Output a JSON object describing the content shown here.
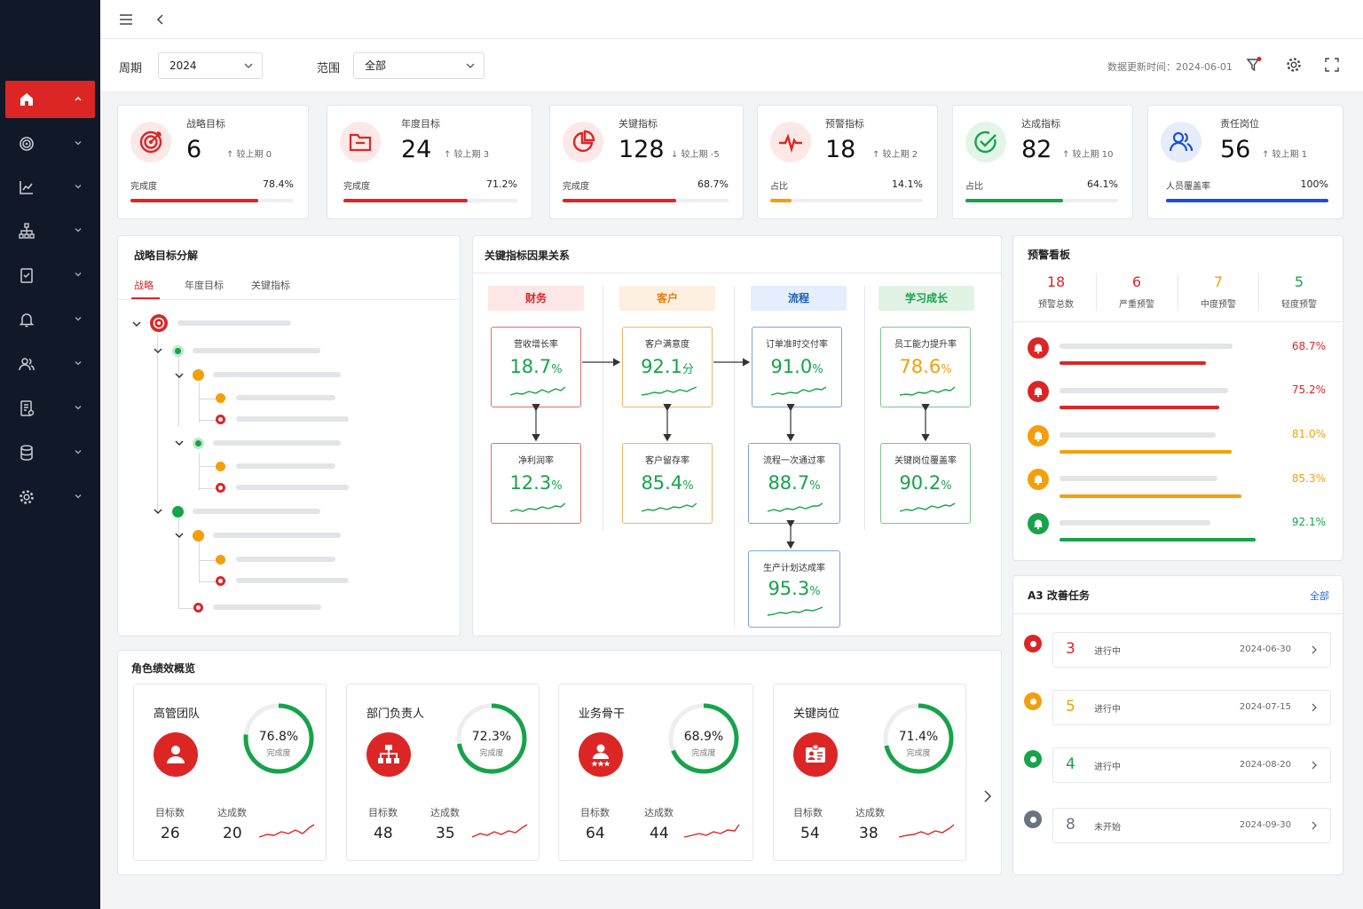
{
  "filters": {
    "period_label": "周期",
    "period_value": "2024",
    "scope_label": "范围",
    "scope_value": "全部",
    "updated": "数据更新时间：2024-06-01"
  },
  "kpis": [
    {
      "title": "战略目标",
      "value": "6",
      "delta": "↑ 较上期  0",
      "foot_label": "完成度",
      "foot_value": "78.4%",
      "progress": 0.784,
      "color": "#dc2626",
      "icon": "target-icon"
    },
    {
      "title": "年度目标",
      "value": "24",
      "delta": "↑ 较上期  3",
      "foot_label": "完成度",
      "foot_value": "71.2%",
      "progress": 0.712,
      "color": "#dc2626",
      "icon": "folder-icon"
    },
    {
      "title": "关键指标",
      "value": "128",
      "delta": "↓ 较上期  -5",
      "foot_label": "完成度",
      "foot_value": "68.7%",
      "progress": 0.687,
      "color": "#dc2626",
      "icon": "pie-icon"
    },
    {
      "title": "预警指标",
      "value": "18",
      "delta": "↑ 较上期  2",
      "foot_label": "占比",
      "foot_value": "14.1%",
      "progress": 0.141,
      "color": "#f59e0b",
      "icon": "pulse-icon"
    },
    {
      "title": "达成指标",
      "value": "82",
      "delta": "↑ 较上期  10",
      "foot_label": "占比",
      "foot_value": "64.1%",
      "progress": 0.641,
      "color": "#16a34a",
      "icon": "check-circle-icon"
    },
    {
      "title": "责任岗位",
      "value": "56",
      "delta": "↑ 较上期  1",
      "foot_label": "人员覆盖率",
      "foot_value": "100%",
      "progress": 1.0,
      "color": "#1d4ed8",
      "icon": "users-icon"
    }
  ],
  "decomp": {
    "title": "战略目标分解",
    "tabs": [
      "战略",
      "年度目标",
      "关键指标"
    ]
  },
  "causal": {
    "title": "关键指标因果关系",
    "categories": [
      "财务",
      "客户",
      "流程",
      "学习成长"
    ],
    "nodes": [
      {
        "title": "营收增长率",
        "value": "18.7",
        "unit": "%"
      },
      {
        "title": "净利润率",
        "value": "12.3",
        "unit": "%"
      },
      {
        "title": "客户满意度",
        "value": "92.1",
        "unit": "分"
      },
      {
        "title": "客户留存率",
        "value": "85.4",
        "unit": "%"
      },
      {
        "title": "订单准时交付率",
        "value": "91.0",
        "unit": "%"
      },
      {
        "title": "流程一次通过率",
        "value": "88.7",
        "unit": "%"
      },
      {
        "title": "生产计划达成率",
        "value": "95.3",
        "unit": "%"
      },
      {
        "title": "员工能力提升率",
        "value": "78.6",
        "unit": "%"
      },
      {
        "title": "关键岗位覆盖率",
        "value": "90.2",
        "unit": "%"
      }
    ]
  },
  "warning": {
    "title": "预警看板",
    "stats": [
      {
        "num": "18",
        "label": "预警总数",
        "color": "#dc2626"
      },
      {
        "num": "6",
        "label": "严重预警",
        "color": "#dc2626"
      },
      {
        "num": "7",
        "label": "中度预警",
        "color": "#f59e0b"
      },
      {
        "num": "5",
        "label": "轻度预警",
        "color": "#16a34a"
      }
    ],
    "rows": [
      {
        "pct": "68.7%",
        "value": 0.687,
        "color": "#dc2626"
      },
      {
        "pct": "75.2%",
        "value": 0.752,
        "color": "#dc2626"
      },
      {
        "pct": "81.0%",
        "value": 0.81,
        "color": "#f59e0b"
      },
      {
        "pct": "85.3%",
        "value": 0.853,
        "color": "#f59e0b"
      },
      {
        "pct": "92.1%",
        "value": 0.921,
        "color": "#16a34a"
      }
    ]
  },
  "tasks": {
    "title": "A3 改善任务",
    "all_link": "全部",
    "items": [
      {
        "num": "3",
        "status": "进行中",
        "date": "2024-06-30",
        "color": "#dc2626"
      },
      {
        "num": "5",
        "status": "进行中",
        "date": "2024-07-15",
        "color": "#f59e0b"
      },
      {
        "num": "4",
        "status": "进行中",
        "date": "2024-08-20",
        "color": "#16a34a"
      },
      {
        "num": "8",
        "status": "未开始",
        "date": "2024-09-30",
        "color": "#6b7280"
      }
    ]
  },
  "roles": {
    "title": "角色绩效概览",
    "items": [
      {
        "name": "高管团队",
        "pct": "76.8%",
        "value": 0.768,
        "sub": "完成度",
        "target_label": "目标数",
        "target": "26",
        "done_label": "达成数",
        "done": "20",
        "icon": "person-icon"
      },
      {
        "name": "部门负责人",
        "pct": "72.3%",
        "value": 0.723,
        "sub": "完成度",
        "target_label": "目标数",
        "target": "48",
        "done_label": "达成数",
        "done": "35",
        "icon": "org-chart-icon"
      },
      {
        "name": "业务骨干",
        "pct": "68.9%",
        "value": 0.689,
        "sub": "完成度",
        "target_label": "目标数",
        "target": "64",
        "done_label": "达成数",
        "done": "44",
        "icon": "star-person-icon"
      },
      {
        "name": "关键岗位",
        "pct": "71.4%",
        "value": 0.714,
        "sub": "完成度",
        "target_label": "目标数",
        "target": "54",
        "done_label": "达成数",
        "done": "38",
        "icon": "id-card-icon"
      }
    ]
  }
}
